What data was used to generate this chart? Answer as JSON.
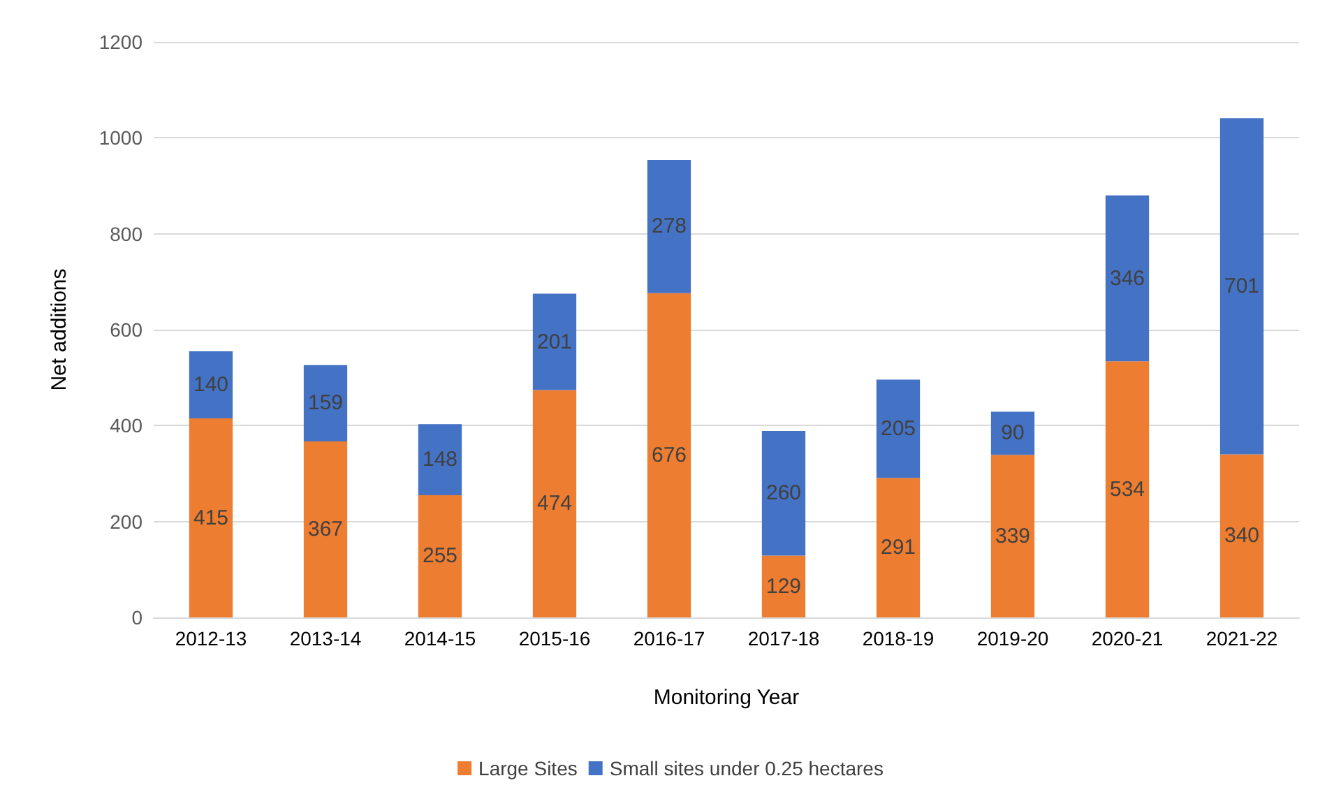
{
  "chart_data": {
    "type": "bar",
    "xlabel": "Monitoring Year",
    "ylabel": "Net additions",
    "categories": [
      "2012-13",
      "2013-14",
      "2014-15",
      "2015-16",
      "2016-17",
      "2017-18",
      "2018-19",
      "2019-20",
      "2020-21",
      "2021-22"
    ],
    "series": [
      {
        "name": "Large Sites",
        "color": "#ed7d31",
        "values": [
          415,
          367,
          255,
          474,
          676,
          129,
          291,
          339,
          534,
          340
        ]
      },
      {
        "name": "Small sites under 0.25 hectares",
        "color": "#4472c4",
        "values": [
          140,
          159,
          148,
          201,
          278,
          260,
          205,
          90,
          346,
          701
        ]
      }
    ],
    "stacked": true,
    "data_labels": true,
    "ylim": [
      0,
      1200
    ],
    "yticks": [
      0,
      200,
      400,
      600,
      800,
      1000,
      1200
    ],
    "grid": "y",
    "legend": "bottom"
  }
}
